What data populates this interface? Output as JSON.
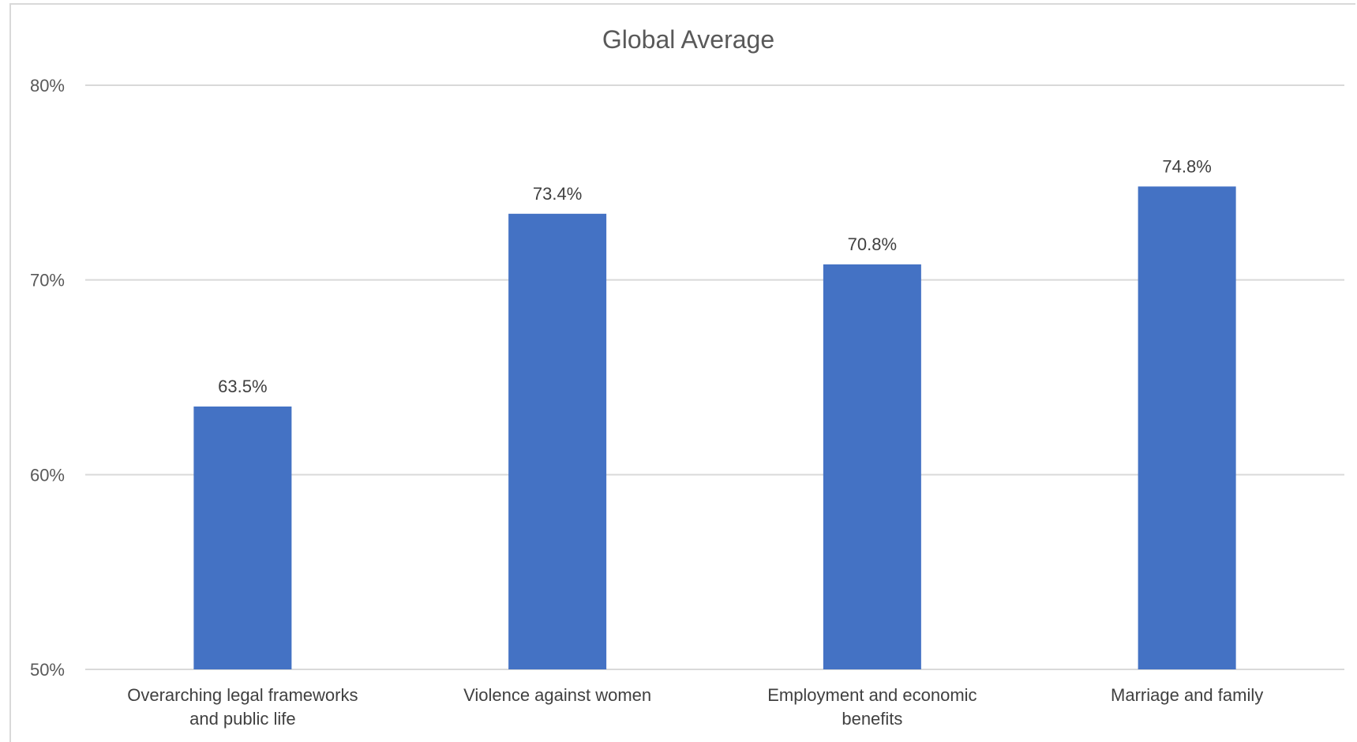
{
  "chart_data": {
    "type": "bar",
    "title": "Global Average",
    "xlabel": "",
    "ylabel": "",
    "ylim": [
      50,
      80
    ],
    "yticks": [
      80,
      70,
      60,
      50
    ],
    "y_tick_labels": [
      "80%",
      "70%",
      "60%",
      "50%"
    ],
    "grid": true,
    "legend": "none",
    "categories": [
      [
        "Overarching legal frameworks",
        "and public life"
      ],
      [
        "Violence against women"
      ],
      [
        "Employment and economic",
        "benefits"
      ],
      [
        "Marriage and family"
      ]
    ],
    "values": [
      63.5,
      73.4,
      70.8,
      74.8
    ],
    "data_labels": [
      "63.5%",
      "73.4%",
      "70.8%",
      "74.8%"
    ],
    "bar_color": "#4472C4"
  }
}
